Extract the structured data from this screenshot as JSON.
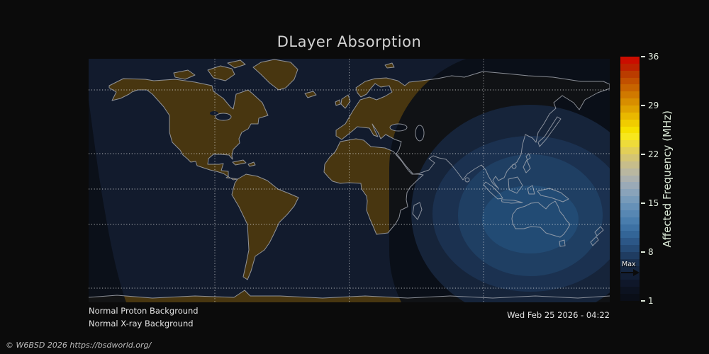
{
  "title": "DLayer Absorption",
  "status": {
    "proton": "Normal Proton Background",
    "xray": "Normal X-ray Background"
  },
  "timestamp": "Wed Feb 25 2026 - 04:22",
  "copyright": "© W6BSD 2026 https://bsdworld.org/",
  "colorbar": {
    "label": "Affected Frequency (MHz)",
    "ticks": [
      36,
      29,
      22,
      15,
      8,
      1
    ],
    "range_min": 1,
    "range_max": 36,
    "max_marker_label": "Max",
    "max_marker_value": 5,
    "segments_bottom_to_top": [
      "#0a0e18",
      "#0c1220",
      "#0f172a",
      "#121e34",
      "#152640",
      "#1a304f",
      "#1f3c61",
      "#254a75",
      "#2c5787",
      "#336597",
      "#3d71a3",
      "#497dad",
      "#5787b3",
      "#6691b7",
      "#779bba",
      "#89a3ba",
      "#9aaab7",
      "#aab0ae",
      "#b9b7a0",
      "#c7bd8b",
      "#d4c573",
      "#e2cf58",
      "#eedb3a",
      "#f7e71d",
      "#f6e000",
      "#f0cc00",
      "#e9b800",
      "#e0a200",
      "#d88e00",
      "#d07900",
      "#c86400",
      "#c15000",
      "#ba3c00",
      "#bd2200",
      "#cb0d00"
    ]
  },
  "map": {
    "ocean": "#121b2d",
    "land": "#483610",
    "coastline": "#a9adb5",
    "grid": "#e8e8e8",
    "bands": {
      "night_shadow": "#0a0e16",
      "outer": "#16243a",
      "mid": "#1b3150",
      "inner": "#1f3f63",
      "core": "#224b74"
    }
  },
  "chart_data": {
    "type": "heatmap",
    "title": "DLayer Absorption",
    "colorbar_label": "Affected Frequency (MHz)",
    "colorbar_ticks": [
      36,
      29,
      22,
      15,
      8,
      1
    ],
    "colorbar_range": [
      1,
      36
    ],
    "max_marker_value_mhz": 5,
    "annotations": [
      "Normal Proton Background",
      "Normal X-ray Background",
      "Wed Feb 25 2026 - 04:22"
    ],
    "legend_position": "right colorbar",
    "grid": "dotted lat/lon graticule",
    "description": "World map (equirectangular) of HF D-layer absorption. Concentric contour bands of rising affected frequency (about 1 to 5 MHz) are centered on the daylit hemisphere over Indonesia/Australia; the night side shows the base map with brown land and dark navy ocean, separated by a near-black terminator ring."
  }
}
